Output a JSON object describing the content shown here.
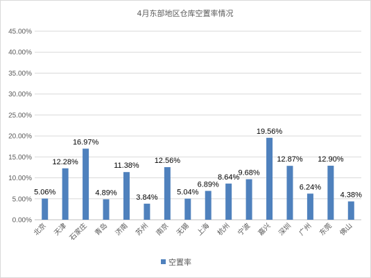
{
  "chart_data": {
    "type": "bar",
    "title": "4月东部地区仓库空置率情况",
    "categories": [
      "北京",
      "天津",
      "石家庄",
      "青岛",
      "济南",
      "苏州",
      "南京",
      "无锡",
      "上海",
      "杭州",
      "宁波",
      "嘉兴",
      "深圳",
      "广州",
      "东莞",
      "佛山"
    ],
    "series": [
      {
        "name": "空置率",
        "values": [
          5.06,
          12.28,
          16.97,
          4.89,
          11.38,
          3.84,
          12.56,
          5.04,
          6.89,
          8.64,
          9.68,
          19.56,
          12.87,
          6.24,
          12.9,
          4.38
        ],
        "data_labels": [
          "5.06%",
          "12.28%",
          "16.97%",
          "4.89%",
          "11.38%",
          "3.84%",
          "12.56%",
          "5.04%",
          "6.89%",
          "8.64%",
          "9.68%",
          "19.56%",
          "12.87%",
          "6.24%",
          "12.90%",
          "4.38%"
        ]
      }
    ],
    "ylim": [
      0,
      45
    ],
    "ytick_labels": [
      "0.00%",
      "5.00%",
      "10.00%",
      "15.00%",
      "20.00%",
      "25.00%",
      "30.00%",
      "35.00%",
      "40.00%",
      "45.00%"
    ],
    "grid": true,
    "legend_position": "bottom",
    "colors": {
      "bar": "#4f81bd",
      "grid": "#d9d9d9",
      "text": "#595959"
    }
  }
}
